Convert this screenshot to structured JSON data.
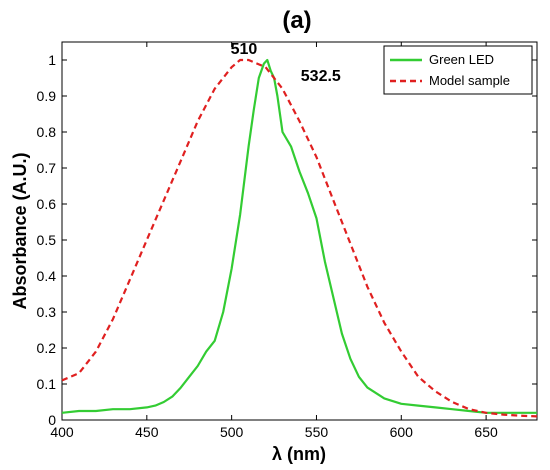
{
  "chart_data": {
    "type": "line",
    "title": "(a)",
    "xlabel": "λ (nm)",
    "ylabel": "Absorbance (A.U.)",
    "xlim": [
      400,
      680
    ],
    "ylim": [
      0,
      1.05
    ],
    "xticks": [
      400,
      450,
      500,
      550,
      600,
      650
    ],
    "yticks": [
      0,
      0.1,
      0.2,
      0.3,
      0.4,
      0.5,
      0.6,
      0.7,
      0.8,
      0.9,
      1
    ],
    "grid": false,
    "legend_position": "top-right",
    "annotations": [
      {
        "text": "510",
        "x": 510,
        "y": 1.0
      },
      {
        "text": "532.5",
        "x": 532.5,
        "y": 0.97
      }
    ],
    "series": [
      {
        "name": "Green LED",
        "color": "#33cc33",
        "style": "solid",
        "x": [
          400,
          410,
          420,
          430,
          440,
          450,
          455,
          460,
          465,
          470,
          475,
          480,
          485,
          490,
          495,
          500,
          505,
          510,
          513,
          516,
          519,
          521,
          523,
          525,
          527,
          530,
          535,
          540,
          545,
          550,
          555,
          560,
          565,
          570,
          575,
          580,
          590,
          600,
          610,
          620,
          630,
          640,
          650,
          660,
          670,
          680
        ],
        "values": [
          0.02,
          0.025,
          0.025,
          0.03,
          0.03,
          0.035,
          0.04,
          0.05,
          0.065,
          0.09,
          0.12,
          0.15,
          0.19,
          0.22,
          0.3,
          0.42,
          0.57,
          0.76,
          0.86,
          0.95,
          0.99,
          1.0,
          0.97,
          0.95,
          0.9,
          0.8,
          0.76,
          0.69,
          0.63,
          0.56,
          0.44,
          0.34,
          0.24,
          0.17,
          0.12,
          0.09,
          0.06,
          0.045,
          0.04,
          0.035,
          0.03,
          0.025,
          0.02,
          0.02,
          0.02,
          0.02
        ]
      },
      {
        "name": "Model sample",
        "color": "#e02020",
        "color_tail": "#8b4513",
        "style": "dashed",
        "x": [
          400,
          410,
          420,
          430,
          440,
          450,
          460,
          470,
          480,
          490,
          500,
          505,
          510,
          515,
          520,
          530,
          540,
          550,
          560,
          570,
          580,
          590,
          600,
          610,
          620,
          630,
          640,
          650,
          660,
          670,
          680
        ],
        "values": [
          0.11,
          0.13,
          0.19,
          0.28,
          0.39,
          0.5,
          0.61,
          0.72,
          0.83,
          0.92,
          0.98,
          1.0,
          1.0,
          0.99,
          0.98,
          0.92,
          0.83,
          0.73,
          0.61,
          0.49,
          0.37,
          0.27,
          0.19,
          0.12,
          0.08,
          0.05,
          0.03,
          0.02,
          0.015,
          0.012,
          0.01
        ]
      }
    ]
  }
}
